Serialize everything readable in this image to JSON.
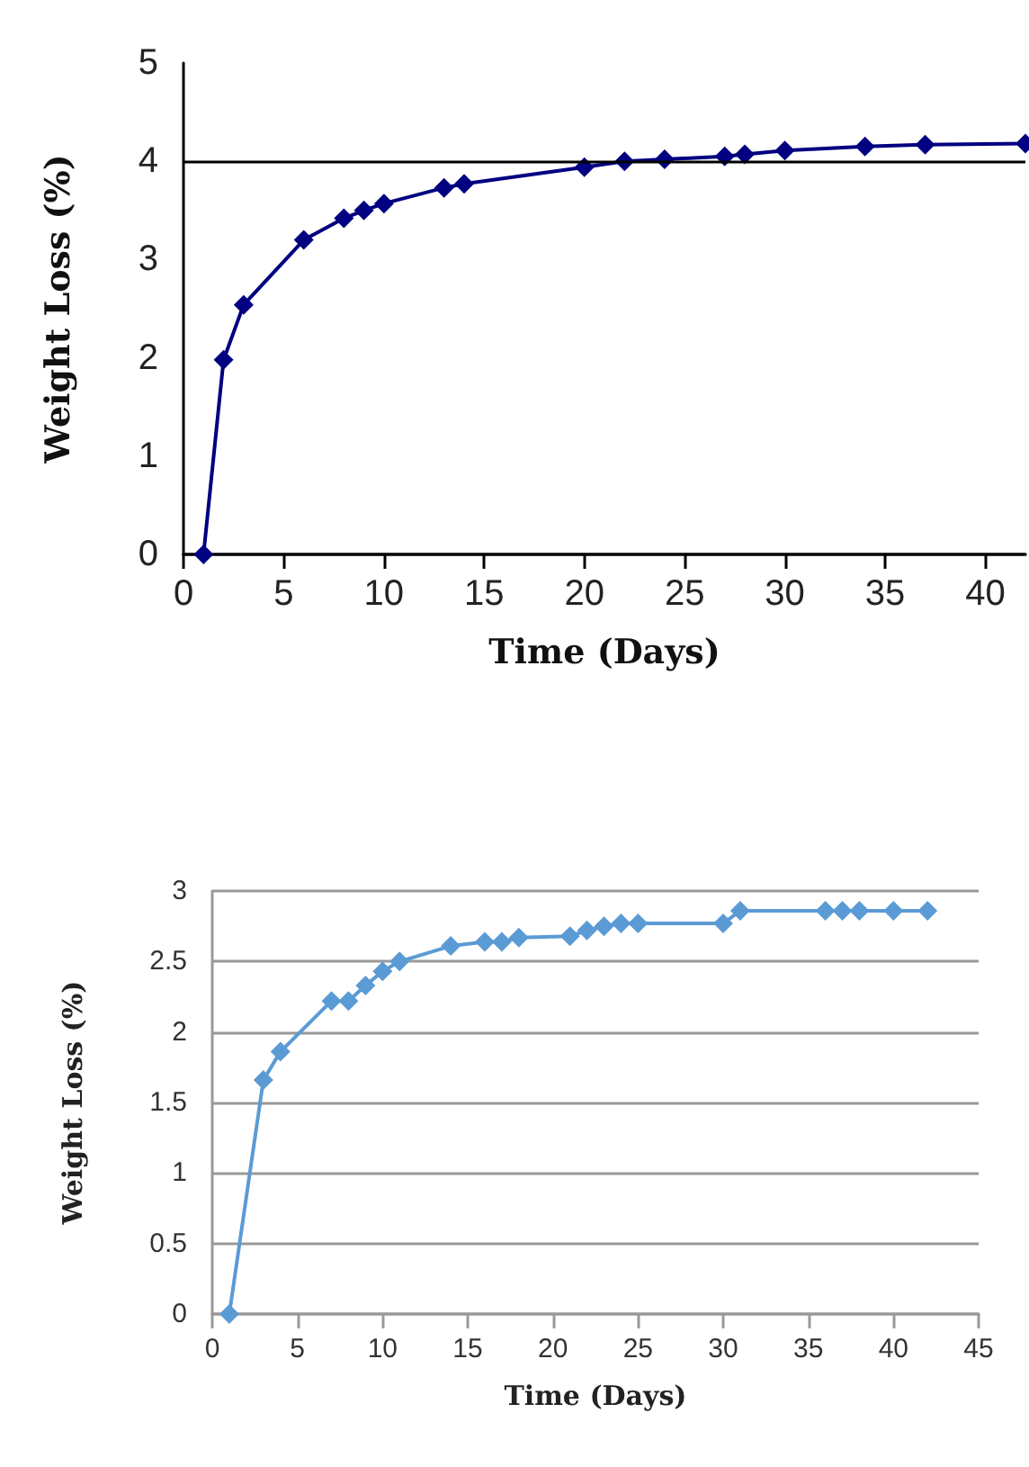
{
  "chart_data": [
    {
      "type": "line",
      "xlabel": "Time (Days)",
      "ylabel": "Weight Loss (%)",
      "marker": "diamond",
      "grid": false,
      "x": [
        1,
        2,
        3,
        6,
        8,
        9,
        10,
        13,
        14,
        20,
        22,
        24,
        27,
        28,
        30,
        34,
        37,
        42
      ],
      "series": [
        {
          "color": "#000080",
          "values": [
            0,
            1.98,
            2.54,
            3.2,
            3.42,
            3.5,
            3.57,
            3.73,
            3.77,
            3.94,
            4.0,
            4.02,
            4.05,
            4.07,
            4.11,
            4.15,
            4.17,
            4.18
          ]
        }
      ],
      "xlim": [
        0,
        42
      ],
      "xticks": [
        0,
        5,
        10,
        15,
        20,
        25,
        30,
        35,
        40
      ],
      "ylim": [
        0,
        5
      ],
      "yticks": [
        0,
        1,
        2,
        3,
        4,
        5
      ],
      "ref_lines": [
        {
          "axis": "y",
          "value": 4,
          "color": "#000000"
        }
      ]
    },
    {
      "type": "line",
      "xlabel": "Time (Days)",
      "ylabel": "Weight Loss (%)",
      "marker": "diamond",
      "grid": "y",
      "x": [
        1,
        3,
        4,
        7,
        8,
        9,
        10,
        11,
        14,
        16,
        17,
        18,
        21,
        22,
        23,
        24,
        25,
        30,
        31,
        36,
        37,
        38,
        40,
        42
      ],
      "series": [
        {
          "color": "#5b9bd5",
          "values": [
            0,
            1.66,
            1.86,
            2.22,
            2.22,
            2.33,
            2.43,
            2.5,
            2.61,
            2.64,
            2.64,
            2.67,
            2.68,
            2.72,
            2.75,
            2.77,
            2.77,
            2.77,
            2.86,
            2.86,
            2.86,
            2.86,
            2.86,
            2.86
          ]
        }
      ],
      "xlim": [
        0,
        45
      ],
      "xticks": [
        0,
        5,
        10,
        15,
        20,
        25,
        30,
        35,
        40,
        45
      ],
      "ylim": [
        0,
        3
      ],
      "yticks": [
        0,
        0.5,
        1,
        1.5,
        2,
        2.5,
        3
      ]
    }
  ]
}
